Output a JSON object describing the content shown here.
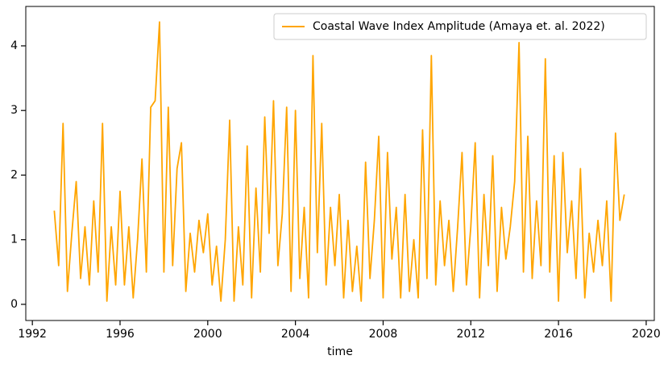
{
  "chart_data": {
    "type": "line",
    "x_label": "time",
    "legend_position": "upper right",
    "xlim": [
      1991.7,
      2020.37
    ],
    "ylim": [
      -0.25,
      4.61
    ],
    "xticks": [
      1992,
      1996,
      2000,
      2004,
      2008,
      2012,
      2016,
      2020
    ],
    "yticks": [
      0,
      1,
      2,
      3,
      4
    ],
    "x": [
      1993.0,
      1993.2,
      1993.4,
      1993.6,
      1993.8,
      1994.0,
      1994.2,
      1994.4,
      1994.6,
      1994.8,
      1995.0,
      1995.2,
      1995.4,
      1995.6,
      1995.8,
      1996.0,
      1996.2,
      1996.4,
      1996.6,
      1996.8,
      1997.0,
      1997.2,
      1997.4,
      1997.6,
      1997.8,
      1998.0,
      1998.2,
      1998.4,
      1998.6,
      1998.8,
      1999.0,
      1999.2,
      1999.4,
      1999.6,
      1999.8,
      2000.0,
      2000.2,
      2000.4,
      2000.6,
      2000.8,
      2001.0,
      2001.2,
      2001.4,
      2001.6,
      2001.8,
      2002.0,
      2002.2,
      2002.4,
      2002.6,
      2002.8,
      2003.0,
      2003.2,
      2003.4,
      2003.6,
      2003.8,
      2004.0,
      2004.2,
      2004.4,
      2004.6,
      2004.8,
      2005.0,
      2005.2,
      2005.4,
      2005.6,
      2005.8,
      2006.0,
      2006.2,
      2006.4,
      2006.6,
      2006.8,
      2007.0,
      2007.2,
      2007.4,
      2007.6,
      2007.8,
      2008.0,
      2008.2,
      2008.4,
      2008.6,
      2008.8,
      2009.0,
      2009.2,
      2009.4,
      2009.6,
      2009.8,
      2010.0,
      2010.2,
      2010.4,
      2010.6,
      2010.8,
      2011.0,
      2011.2,
      2011.4,
      2011.6,
      2011.8,
      2012.0,
      2012.2,
      2012.4,
      2012.6,
      2012.8,
      2013.0,
      2013.2,
      2013.4,
      2013.6,
      2013.8,
      2014.0,
      2014.2,
      2014.4,
      2014.6,
      2014.8,
      2015.0,
      2015.2,
      2015.4,
      2015.6,
      2015.8,
      2016.0,
      2016.2,
      2016.4,
      2016.6,
      2016.8,
      2017.0,
      2017.2,
      2017.4,
      2017.6,
      2017.8,
      2018.0,
      2018.2,
      2018.4,
      2018.6,
      2018.8,
      2019.0
    ],
    "series": [
      {
        "name": "Coastal Wave Index Amplitude (Amaya et. al. 2022)",
        "color": "#ffa500",
        "values": [
          1.45,
          0.6,
          2.8,
          0.2,
          1.1,
          1.9,
          0.4,
          1.2,
          0.3,
          1.6,
          0.5,
          2.8,
          0.05,
          1.2,
          0.3,
          1.75,
          0.3,
          1.2,
          0.1,
          1.0,
          2.25,
          0.5,
          3.05,
          3.15,
          4.37,
          0.5,
          3.05,
          0.6,
          2.1,
          2.5,
          0.2,
          1.1,
          0.5,
          1.3,
          0.8,
          1.4,
          0.3,
          0.9,
          0.05,
          1.0,
          2.85,
          0.05,
          1.2,
          0.3,
          2.45,
          0.1,
          1.8,
          0.5,
          2.9,
          1.1,
          3.15,
          0.6,
          1.4,
          3.05,
          0.2,
          3.0,
          0.4,
          1.5,
          0.1,
          3.85,
          0.8,
          2.8,
          0.3,
          1.5,
          0.6,
          1.7,
          0.1,
          1.3,
          0.2,
          0.9,
          0.05,
          2.2,
          0.4,
          1.3,
          2.6,
          0.1,
          2.35,
          0.7,
          1.5,
          0.1,
          1.7,
          0.2,
          1.0,
          0.1,
          2.7,
          0.4,
          3.85,
          0.3,
          1.6,
          0.6,
          1.3,
          0.2,
          1.2,
          2.35,
          0.3,
          1.2,
          2.5,
          0.1,
          1.7,
          0.6,
          2.3,
          0.2,
          1.5,
          0.7,
          1.2,
          1.9,
          4.05,
          0.5,
          2.6,
          0.4,
          1.6,
          0.6,
          3.8,
          0.5,
          2.3,
          0.05,
          2.35,
          0.8,
          1.6,
          0.4,
          2.1,
          0.1,
          1.1,
          0.5,
          1.3,
          0.6,
          1.6,
          0.05,
          2.65,
          1.3,
          1.7
        ]
      }
    ]
  }
}
